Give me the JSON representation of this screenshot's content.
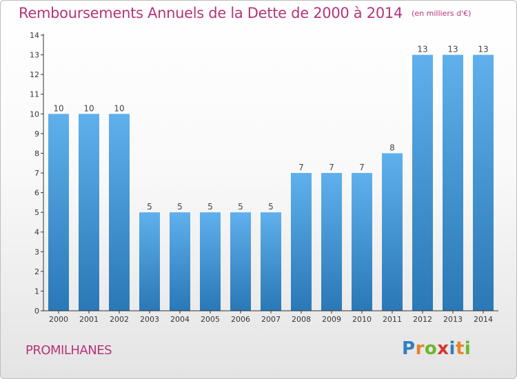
{
  "title": "Remboursements Annuels de la Dette de 2000 à 2014",
  "unit": "(en milliers d'€)",
  "commune": "PROMILHANES",
  "brand": {
    "letters": [
      "P",
      "r",
      "o",
      "x",
      "i",
      "t",
      "i"
    ],
    "colors": [
      "#2f7fc4",
      "#e8832a",
      "#6ab82d",
      "#d9342b",
      "#2f7fc4",
      "#e8832a",
      "#6ab82d"
    ]
  },
  "colors": {
    "title": "#b5347a",
    "bar_top": "#5fb0ec",
    "bar_bottom": "#2a78b6",
    "axis": "#333333"
  },
  "chart_data": {
    "type": "bar",
    "title": "Remboursements Annuels de la Dette de 2000 à 2014",
    "ylabel": "",
    "xlabel": "",
    "categories": [
      "2000",
      "2001",
      "2002",
      "2003",
      "2004",
      "2005",
      "2006",
      "2007",
      "2008",
      "2009",
      "2010",
      "2011",
      "2012",
      "2013",
      "2014"
    ],
    "values": [
      10,
      10,
      10,
      5,
      5,
      5,
      5,
      5,
      7,
      7,
      7,
      8,
      13,
      13,
      13
    ],
    "y_ticks": [
      "0",
      "1",
      "2",
      "3",
      "4",
      "5",
      "6",
      "7",
      "8",
      "9",
      "10",
      "11",
      "12",
      "13",
      "14"
    ],
    "ylim": [
      0,
      14
    ],
    "grid": false,
    "legend": "none"
  }
}
